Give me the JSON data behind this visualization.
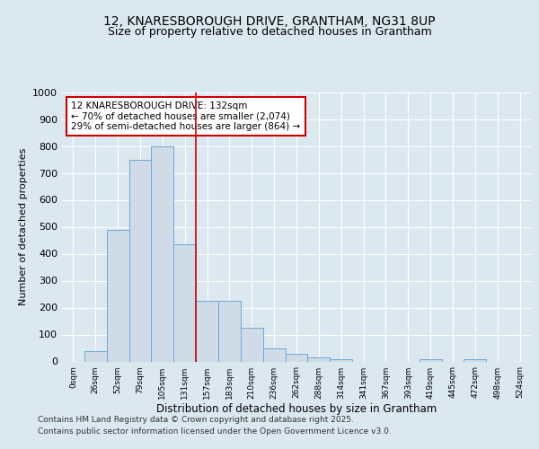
{
  "title1": "12, KNARESBOROUGH DRIVE, GRANTHAM, NG31 8UP",
  "title2": "Size of property relative to detached houses in Grantham",
  "xlabel": "Distribution of detached houses by size in Grantham",
  "ylabel": "Number of detached properties",
  "bar_labels": [
    "0sqm",
    "26sqm",
    "52sqm",
    "79sqm",
    "105sqm",
    "131sqm",
    "157sqm",
    "183sqm",
    "210sqm",
    "236sqm",
    "262sqm",
    "288sqm",
    "314sqm",
    "341sqm",
    "367sqm",
    "393sqm",
    "419sqm",
    "445sqm",
    "472sqm",
    "498sqm",
    "524sqm"
  ],
  "bar_values": [
    0,
    40,
    490,
    750,
    800,
    435,
    225,
    225,
    125,
    50,
    30,
    15,
    10,
    0,
    0,
    0,
    10,
    0,
    10,
    0,
    0
  ],
  "bar_color": "#cfdce8",
  "bar_edge_color": "#6aaad4",
  "vline_x": 5.5,
  "vline_color": "#cc0000",
  "annotation_text": "12 KNARESBOROUGH DRIVE: 132sqm\n← 70% of detached houses are smaller (2,074)\n29% of semi-detached houses are larger (864) →",
  "annotation_box_color": "#ffffff",
  "annotation_box_edge": "#cc0000",
  "ylim": [
    0,
    1000
  ],
  "yticks": [
    0,
    100,
    200,
    300,
    400,
    500,
    600,
    700,
    800,
    900,
    1000
  ],
  "bg_color": "#dce8f0",
  "plot_bg": "#dce8f0",
  "footer1": "Contains HM Land Registry data © Crown copyright and database right 2025.",
  "footer2": "Contains public sector information licensed under the Open Government Licence v3.0.",
  "title1_fontsize": 10,
  "title2_fontsize": 9
}
